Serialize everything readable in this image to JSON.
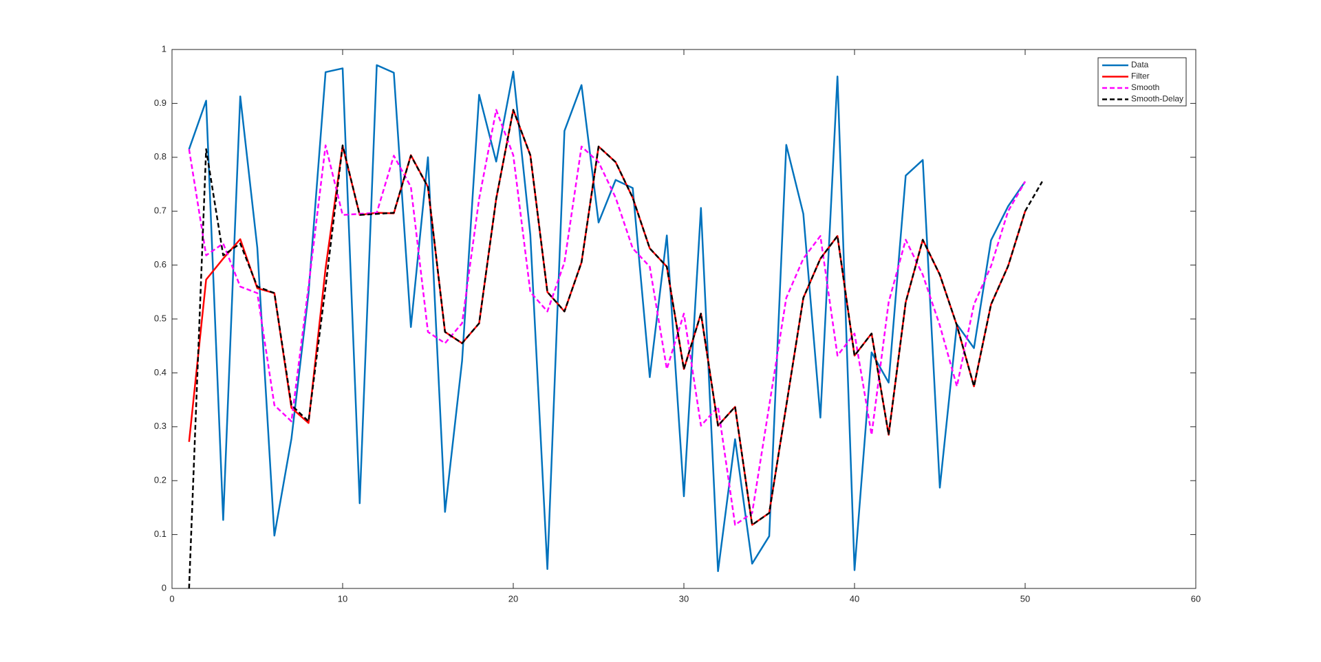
{
  "chart_data": {
    "type": "line",
    "xlim": [
      0,
      60
    ],
    "xticks": [
      0,
      10,
      20,
      30,
      40,
      50,
      60
    ],
    "ylim": [
      0,
      1
    ],
    "yticks": [
      0,
      0.1,
      0.2,
      0.3,
      0.4,
      0.5,
      0.6,
      0.7,
      0.8,
      0.9,
      1
    ],
    "legend": "upper-right",
    "series": [
      {
        "name": "Data",
        "color": "#0072bd",
        "dashed": false,
        "x": [
          1,
          2,
          3,
          4,
          5,
          6,
          7,
          8,
          9,
          10,
          11,
          12,
          13,
          14,
          15,
          16,
          17,
          18,
          19,
          20,
          21,
          22,
          23,
          24,
          25,
          26,
          27,
          28,
          29,
          30,
          31,
          32,
          33,
          34,
          35,
          36,
          37,
          38,
          39,
          40,
          41,
          42,
          43,
          44,
          45,
          46,
          47,
          48,
          49,
          50
        ],
        "values": [
          0.815,
          0.905,
          0.127,
          0.913,
          0.632,
          0.098,
          0.278,
          0.547,
          0.958,
          0.965,
          0.158,
          0.971,
          0.957,
          0.485,
          0.8,
          0.142,
          0.422,
          0.916,
          0.792,
          0.959,
          0.656,
          0.036,
          0.849,
          0.934,
          0.679,
          0.758,
          0.743,
          0.392,
          0.655,
          0.171,
          0.706,
          0.032,
          0.277,
          0.046,
          0.097,
          0.823,
          0.695,
          0.317,
          0.95,
          0.034,
          0.438,
          0.382,
          0.766,
          0.795,
          0.187,
          0.49,
          0.446,
          0.646,
          0.709,
          0.755
        ]
      },
      {
        "name": "Filter",
        "color": "#ff0000",
        "dashed": false,
        "x": [
          1,
          2,
          3,
          4,
          5,
          6,
          7,
          8,
          9,
          10,
          11,
          12,
          13,
          14,
          15,
          16,
          17,
          18,
          19,
          20,
          21,
          22,
          23,
          24,
          25,
          26,
          27,
          28,
          29,
          30,
          31,
          32,
          33,
          34,
          35,
          36,
          37,
          38,
          39,
          40,
          41,
          42,
          43,
          44,
          45,
          46,
          47,
          48,
          49,
          50
        ],
        "values": [
          0.272,
          0.573,
          0.612,
          0.648,
          0.557,
          0.548,
          0.335,
          0.307,
          0.594,
          0.821,
          0.693,
          0.697,
          0.696,
          0.804,
          0.745,
          0.476,
          0.455,
          0.492,
          0.723,
          0.888,
          0.804,
          0.55,
          0.514,
          0.605,
          0.82,
          0.791,
          0.725,
          0.631,
          0.597,
          0.407,
          0.51,
          0.302,
          0.337,
          0.118,
          0.14,
          0.339,
          0.539,
          0.612,
          0.654,
          0.432,
          0.473,
          0.285,
          0.531,
          0.647,
          0.582,
          0.488,
          0.375,
          0.527,
          0.598,
          0.7
        ]
      },
      {
        "name": "Smooth",
        "color": "#ff00ff",
        "dashed": true,
        "x": [
          1,
          2,
          3,
          4,
          5,
          6,
          7,
          8,
          9,
          10,
          11,
          12,
          13,
          14,
          15,
          16,
          17,
          18,
          19,
          20,
          21,
          22,
          23,
          24,
          25,
          26,
          27,
          28,
          29,
          30,
          31,
          32,
          33,
          34,
          35,
          36,
          37,
          38,
          39,
          40,
          41,
          42,
          43,
          44,
          45,
          46,
          47,
          48,
          49,
          50
        ],
        "values": [
          0.815,
          0.618,
          0.64,
          0.56,
          0.548,
          0.34,
          0.31,
          0.56,
          0.822,
          0.693,
          0.695,
          0.697,
          0.803,
          0.745,
          0.476,
          0.455,
          0.492,
          0.723,
          0.888,
          0.804,
          0.55,
          0.514,
          0.605,
          0.82,
          0.791,
          0.725,
          0.631,
          0.597,
          0.407,
          0.51,
          0.302,
          0.337,
          0.118,
          0.14,
          0.339,
          0.539,
          0.612,
          0.654,
          0.432,
          0.473,
          0.285,
          0.531,
          0.647,
          0.582,
          0.488,
          0.375,
          0.527,
          0.598,
          0.7,
          0.755
        ]
      },
      {
        "name": "Smooth-Delay",
        "color": "#000000",
        "dashed": true,
        "x": [
          1,
          2,
          3,
          4,
          5,
          6,
          7,
          8,
          9,
          10,
          11,
          12,
          13,
          14,
          15,
          16,
          17,
          18,
          19,
          20,
          21,
          22,
          23,
          24,
          25,
          26,
          27,
          28,
          29,
          30,
          31,
          32,
          33,
          34,
          35,
          36,
          37,
          38,
          39,
          40,
          41,
          42,
          43,
          44,
          45,
          46,
          47,
          48,
          49,
          50,
          51
        ],
        "values": [
          0,
          0.815,
          0.618,
          0.64,
          0.56,
          0.548,
          0.34,
          0.31,
          0.56,
          0.822,
          0.693,
          0.695,
          0.697,
          0.803,
          0.745,
          0.476,
          0.455,
          0.492,
          0.723,
          0.888,
          0.804,
          0.55,
          0.514,
          0.605,
          0.82,
          0.791,
          0.725,
          0.631,
          0.597,
          0.407,
          0.51,
          0.302,
          0.337,
          0.118,
          0.14,
          0.339,
          0.539,
          0.612,
          0.654,
          0.432,
          0.473,
          0.285,
          0.531,
          0.647,
          0.582,
          0.488,
          0.375,
          0.527,
          0.598,
          0.7,
          0.755
        ]
      }
    ]
  }
}
